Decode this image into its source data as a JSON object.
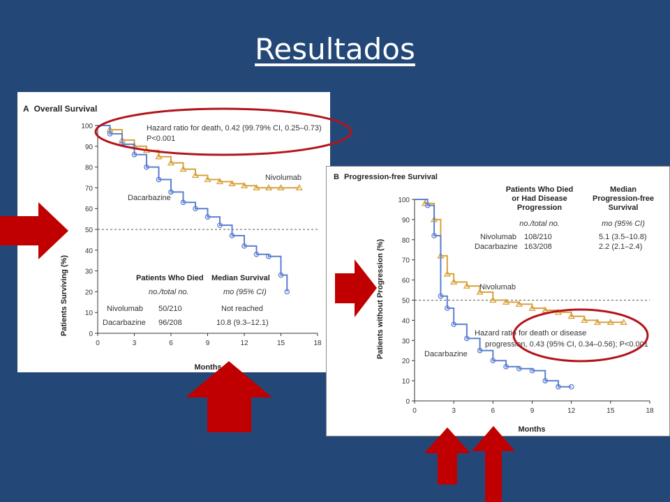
{
  "slide": {
    "title": "Resultados"
  },
  "colors": {
    "background": "#234878",
    "nivolumab": "#d9a03a",
    "dacarbazine": "#5b7fd0",
    "annotation": "#b3141b"
  },
  "chart_data": [
    {
      "type": "line",
      "panel_letter": "A",
      "title": "Overall Survival",
      "xlabel": "Months",
      "ylabel": "Patients Surviving (%)",
      "xlim": [
        0,
        18
      ],
      "ylim": [
        0,
        100
      ],
      "xticks": [
        "0",
        "3",
        "6",
        "9",
        "12",
        "15",
        "18"
      ],
      "yticks": [
        "0",
        "10",
        "20",
        "30",
        "40",
        "50",
        "60",
        "70",
        "80",
        "90",
        "100"
      ],
      "reference_line": 50,
      "annotation": {
        "line1": "Hazard ratio for death, 0.42 (99.79% CI, 0.25–0.73)",
        "line2": "P<0.001"
      },
      "series": [
        {
          "name": "Nivolumab",
          "color": "#d9a03a",
          "marker": "triangle",
          "x": [
            0,
            1,
            2,
            3,
            4,
            5,
            6,
            7,
            8,
            9,
            10,
            11,
            12,
            13,
            14,
            15,
            16.5
          ],
          "y": [
            100,
            98,
            93,
            90,
            88,
            85,
            82,
            79,
            76,
            74,
            73,
            72,
            71,
            70,
            70,
            70,
            70
          ]
        },
        {
          "name": "Dacarbazine",
          "color": "#5b7fd0",
          "marker": "circle",
          "x": [
            0,
            1,
            2,
            3,
            4,
            5,
            6,
            7,
            8,
            9,
            10,
            11,
            12,
            13,
            14,
            15,
            15.5
          ],
          "y": [
            100,
            96,
            91,
            86,
            80,
            74,
            68,
            63,
            60,
            56,
            52,
            47,
            42,
            38,
            37,
            28,
            20
          ]
        }
      ],
      "table": {
        "headers": [
          "Patients Who Died",
          "Median Survival"
        ],
        "subheaders": [
          "no./total no.",
          "mo (95% CI)"
        ],
        "rows": [
          {
            "label": "Nivolumab",
            "died": "50/210",
            "median": "Not reached"
          },
          {
            "label": "Dacarbazine",
            "died": "96/208",
            "median": "10.8 (9.3–12.1)"
          }
        ]
      }
    },
    {
      "type": "line",
      "panel_letter": "B",
      "title": "Progression-free Survival",
      "xlabel": "Months",
      "ylabel": "Patients without Progression (%)",
      "xlim": [
        0,
        18
      ],
      "ylim": [
        0,
        100
      ],
      "xticks": [
        "0",
        "3",
        "6",
        "9",
        "12",
        "15",
        "18"
      ],
      "yticks": [
        "0",
        "10",
        "20",
        "30",
        "40",
        "50",
        "60",
        "70",
        "80",
        "90",
        "100"
      ],
      "reference_line": 50,
      "annotation": {
        "line1": "Hazard ratio for death or disease",
        "line2": "progression, 0.43 (95% CI, 0.34–0.56); P<0.001"
      },
      "series": [
        {
          "name": "Nivolumab",
          "color": "#d9a03a",
          "marker": "triangle",
          "x": [
            0,
            0.8,
            1.5,
            2,
            2.5,
            3,
            4,
            5,
            6,
            7,
            8,
            9,
            10,
            11,
            12,
            13,
            14,
            15,
            16
          ],
          "y": [
            100,
            98,
            90,
            72,
            63,
            59,
            57,
            54,
            50,
            49,
            48,
            46,
            45,
            44,
            42,
            40,
            39,
            39,
            39
          ]
        },
        {
          "name": "Dacarbazine",
          "color": "#5b7fd0",
          "marker": "circle",
          "x": [
            0,
            1,
            1.5,
            2,
            2.5,
            3,
            4,
            5,
            6,
            7,
            8,
            9,
            10,
            11,
            12
          ],
          "y": [
            100,
            97,
            82,
            52,
            46,
            38,
            31,
            25,
            20,
            17,
            16,
            15,
            10,
            7,
            7
          ]
        }
      ],
      "table": {
        "headers": [
          "Patients Who Died or Had Disease Progression",
          "Median Progression-free Survival"
        ],
        "subheaders": [
          "no./total no.",
          "mo (95% CI)"
        ],
        "rows": [
          {
            "label": "Nivolumab",
            "died": "108/210",
            "median": "5.1 (3.5–10.8)"
          },
          {
            "label": "Dacarbazine",
            "died": "163/208",
            "median": "2.2 (2.1–2.4)"
          }
        ]
      }
    }
  ]
}
